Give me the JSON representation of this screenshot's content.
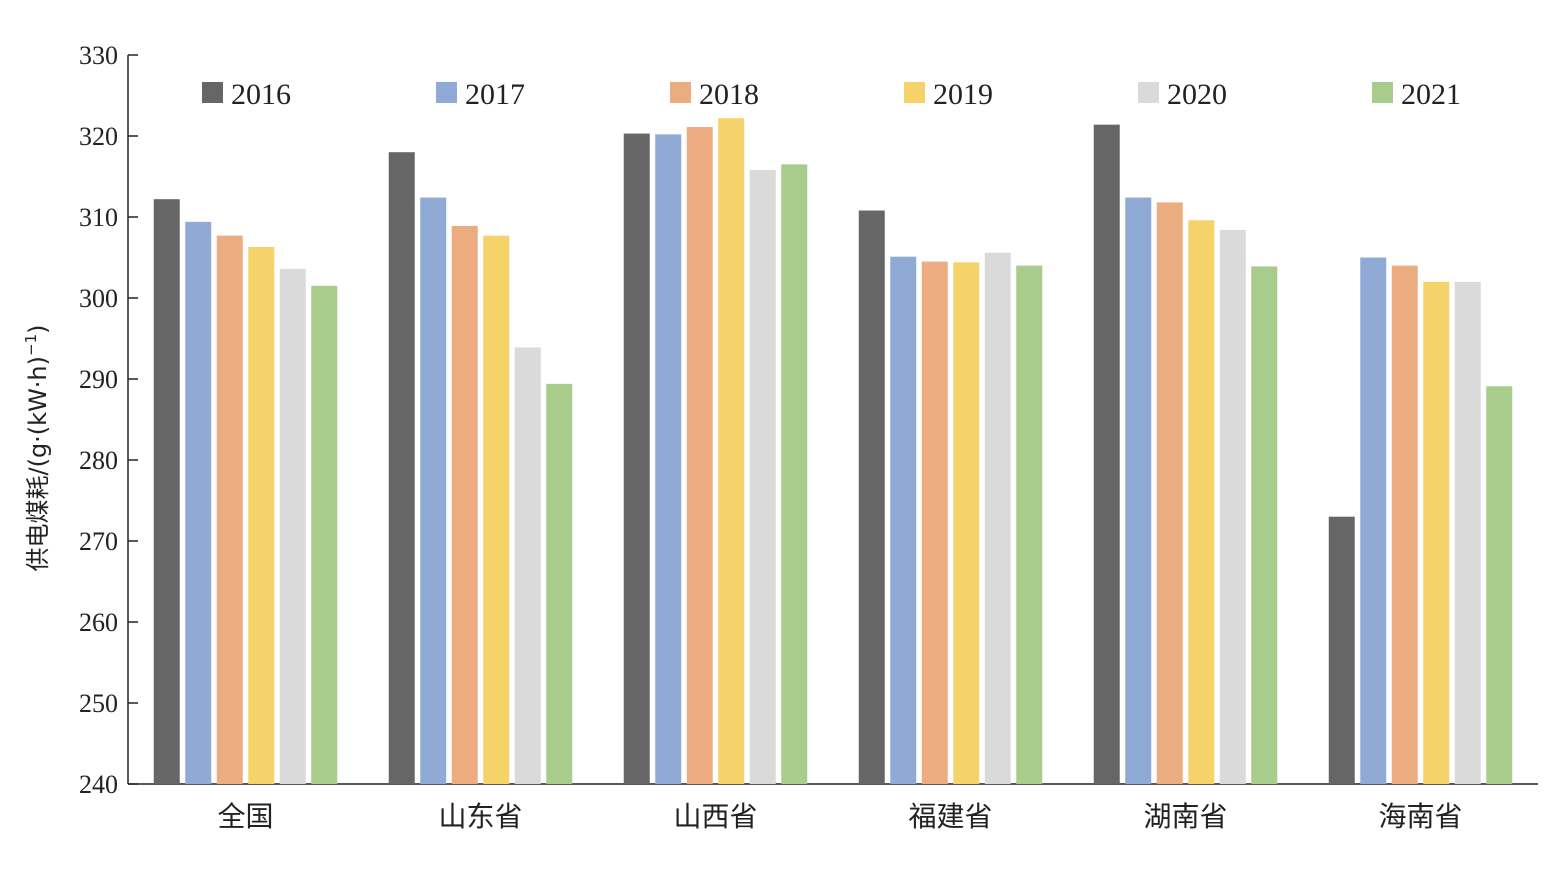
{
  "chart_data": {
    "type": "bar",
    "ylabel": "供电煤耗/(g·(kW·h)",
    "ylabel_sup": "−1",
    "ylabel_close": ")",
    "ylim": [
      240,
      330
    ],
    "yticks": [
      240,
      250,
      260,
      270,
      280,
      290,
      300,
      310,
      320,
      330
    ],
    "grid": false,
    "legend_position": "top",
    "categories": [
      "全国",
      "山东省",
      "山西省",
      "福建省",
      "湖南省",
      "海南省"
    ],
    "series": [
      {
        "name": "2016",
        "color": "#666666",
        "values": [
          312.2,
          318.0,
          320.3,
          310.8,
          321.4,
          273.0
        ]
      },
      {
        "name": "2017",
        "color": "#8faad4",
        "values": [
          309.4,
          312.4,
          320.2,
          305.1,
          312.4,
          305.0
        ]
      },
      {
        "name": "2018",
        "color": "#ebac80",
        "values": [
          307.7,
          308.9,
          321.1,
          304.5,
          311.8,
          304.0
        ]
      },
      {
        "name": "2019",
        "color": "#f5d36a",
        "values": [
          306.3,
          307.7,
          322.2,
          304.4,
          309.6,
          302.0
        ]
      },
      {
        "name": "2020",
        "color": "#dadada",
        "values": [
          303.6,
          293.9,
          315.8,
          305.6,
          308.4,
          302.0
        ]
      },
      {
        "name": "2021",
        "color": "#a7cc8c",
        "values": [
          301.5,
          289.4,
          316.5,
          304.0,
          303.9,
          289.1
        ]
      }
    ]
  }
}
